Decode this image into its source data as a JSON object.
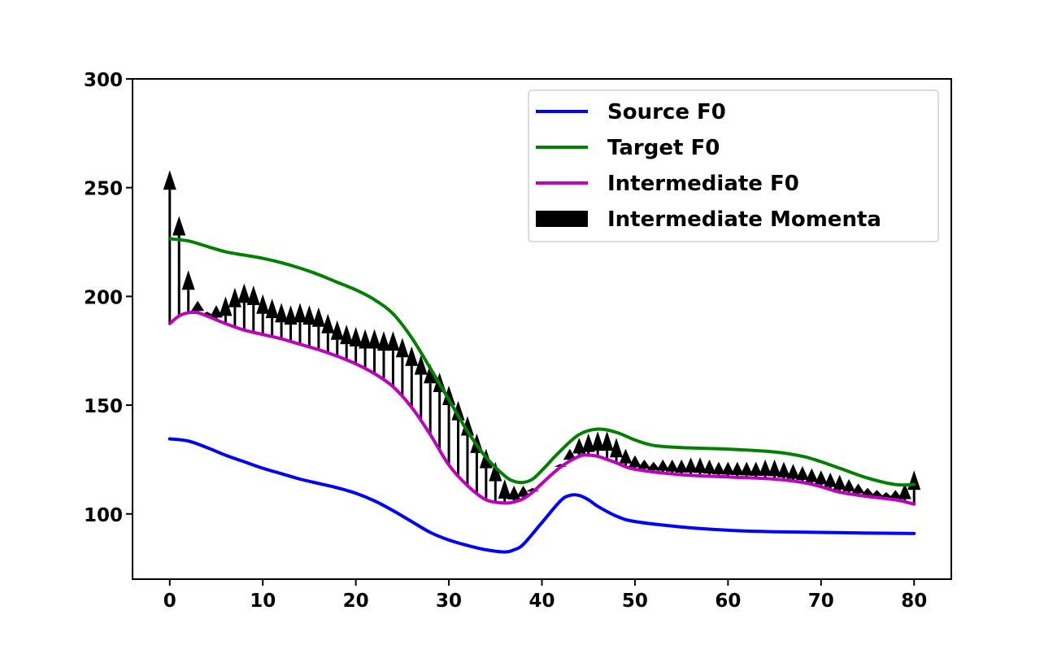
{
  "chart_data": {
    "type": "line",
    "title": "",
    "xlabel": "",
    "ylabel": "",
    "xlim": [
      -4,
      84
    ],
    "ylim": [
      70,
      300
    ],
    "xticks": [
      0,
      10,
      20,
      30,
      40,
      50,
      60,
      70,
      80
    ],
    "yticks": [
      100,
      150,
      200,
      250,
      300
    ],
    "grid": false,
    "legend_position": "top-right",
    "series": [
      {
        "name": "Source F0",
        "color": "#0000ff",
        "x": [
          0,
          2,
          4,
          6,
          8,
          10,
          12,
          14,
          16,
          18,
          20,
          22,
          24,
          26,
          28,
          30,
          32,
          34,
          36,
          37,
          38,
          40,
          42,
          43,
          44,
          45,
          46,
          48,
          50,
          55,
          60,
          65,
          70,
          75,
          80
        ],
        "y": [
          134.5,
          133.5,
          130.5,
          127,
          124,
          121,
          118.5,
          116,
          114,
          112,
          109.5,
          106,
          101.5,
          96.5,
          91.5,
          88,
          85.5,
          83.5,
          82.5,
          83.5,
          86,
          96,
          106,
          108.5,
          108.5,
          106.5,
          103.5,
          99,
          96.5,
          94,
          92.5,
          91.8,
          91.5,
          91.2,
          91
        ]
      },
      {
        "name": "Target F0",
        "color": "#008000",
        "x": [
          0,
          2,
          4,
          6,
          8,
          10,
          12,
          14,
          16,
          18,
          20,
          22,
          24,
          26,
          28,
          30,
          32,
          34,
          36,
          37,
          38,
          39,
          40,
          42,
          44,
          46,
          48,
          50,
          52,
          55,
          60,
          65,
          68,
          70,
          72,
          75,
          78,
          80
        ],
        "y": [
          226.5,
          225.5,
          223,
          220.5,
          219,
          217.5,
          215.5,
          213,
          210,
          206.5,
          203,
          198.5,
          192,
          181,
          167,
          152.5,
          138,
          126,
          117.5,
          115,
          114.5,
          116,
          120,
          129,
          136.5,
          139,
          137.5,
          134,
          131.5,
          130.5,
          129.8,
          128.5,
          126.5,
          124,
          121,
          116.5,
          113.5,
          113.5
        ]
      },
      {
        "name": "Intermediate F0",
        "color": "#bf00bf",
        "x": [
          0,
          1,
          2,
          3,
          4,
          6,
          8,
          10,
          12,
          14,
          16,
          18,
          20,
          22,
          24,
          26,
          28,
          30,
          32,
          34,
          36,
          37,
          38,
          39,
          40,
          42,
          44,
          45,
          46,
          48,
          50,
          55,
          60,
          65,
          68,
          70,
          72,
          75,
          78,
          80
        ],
        "y": [
          187.5,
          191,
          192.5,
          192.5,
          191,
          187.5,
          184.5,
          182.5,
          180.5,
          178,
          175.5,
          172.5,
          169,
          164.5,
          158.5,
          149,
          136.5,
          122.5,
          113,
          106.5,
          105,
          105.5,
          107,
          110,
          114,
          121.5,
          126.5,
          127,
          126.5,
          123.5,
          120.5,
          118,
          117,
          116,
          114.5,
          112.5,
          110,
          108,
          106.5,
          104.5
        ]
      }
    ],
    "momenta": {
      "name": "Intermediate Momenta",
      "color": "#000000",
      "x": [
        0,
        1,
        2,
        3,
        4,
        5,
        6,
        7,
        8,
        9,
        10,
        11,
        12,
        13,
        14,
        15,
        16,
        17,
        18,
        19,
        20,
        21,
        22,
        23,
        24,
        25,
        26,
        27,
        28,
        29,
        30,
        31,
        32,
        33,
        34,
        35,
        36,
        37,
        38,
        39,
        40,
        41,
        42,
        43,
        44,
        45,
        46,
        47,
        48,
        49,
        50,
        51,
        52,
        53,
        54,
        55,
        56,
        57,
        58,
        59,
        60,
        61,
        62,
        63,
        64,
        65,
        66,
        67,
        68,
        69,
        70,
        71,
        72,
        73,
        74,
        75,
        76,
        77,
        78,
        79,
        80
      ],
      "tip": [
        258,
        237,
        212,
        198,
        193,
        196,
        200,
        204,
        206,
        205,
        201,
        199,
        197,
        196,
        197,
        196,
        195,
        192,
        189,
        187,
        186,
        185,
        185,
        184,
        184,
        181,
        177,
        173,
        169,
        165,
        159,
        152,
        145,
        137,
        130,
        124,
        116,
        113,
        113,
        112,
        114,
        117,
        123,
        130,
        135,
        137,
        138,
        138,
        135,
        130,
        127,
        125,
        124,
        125,
        125,
        125,
        126,
        126,
        125,
        124,
        124,
        124,
        124,
        124,
        125,
        125,
        124,
        123,
        122,
        121,
        120,
        119,
        118,
        116,
        114,
        112,
        111,
        110,
        111,
        114,
        120
      ]
    }
  }
}
